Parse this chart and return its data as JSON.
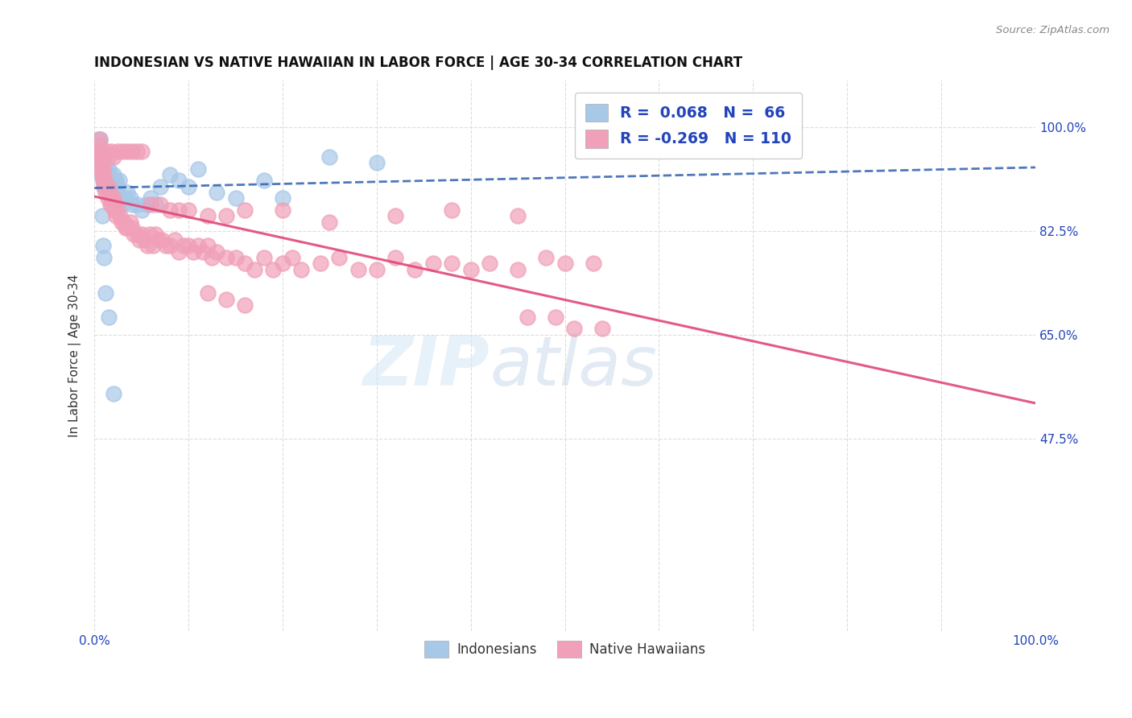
{
  "title": "INDONESIAN VS NATIVE HAWAIIAN IN LABOR FORCE | AGE 30-34 CORRELATION CHART",
  "source": "Source: ZipAtlas.com",
  "ylabel": "In Labor Force | Age 30-34",
  "ytick_labels": [
    "100.0%",
    "82.5%",
    "65.0%",
    "47.5%"
  ],
  "ytick_values": [
    1.0,
    0.825,
    0.65,
    0.475
  ],
  "xlim": [
    0.0,
    1.0
  ],
  "ylim": [
    0.15,
    1.08
  ],
  "watermark_zip": "ZIP",
  "watermark_atlas": "atlas",
  "legend_r_blue": "R =  0.068",
  "legend_n_blue": "N =  66",
  "legend_r_pink": "R = -0.269",
  "legend_n_pink": "N = 110",
  "blue_color": "#a8c8e8",
  "pink_color": "#f0a0b8",
  "blue_line_color": "#3060b0",
  "pink_line_color": "#e04878",
  "blue_edge_color": "#a8c8e8",
  "pink_edge_color": "#f0a0b8",
  "legend_text_color": "#2244bb",
  "title_color": "#111111",
  "axis_label_color": "#2244bb",
  "grid_color": "#dddddd",
  "blue_scatter_x": [
    0.003,
    0.004,
    0.004,
    0.005,
    0.005,
    0.006,
    0.006,
    0.006,
    0.007,
    0.007,
    0.007,
    0.008,
    0.008,
    0.008,
    0.009,
    0.009,
    0.01,
    0.01,
    0.01,
    0.011,
    0.011,
    0.012,
    0.012,
    0.013,
    0.013,
    0.014,
    0.015,
    0.015,
    0.016,
    0.017,
    0.018,
    0.019,
    0.02,
    0.021,
    0.022,
    0.023,
    0.025,
    0.026,
    0.028,
    0.03,
    0.032,
    0.035,
    0.038,
    0.04,
    0.045,
    0.05,
    0.055,
    0.06,
    0.065,
    0.07,
    0.08,
    0.09,
    0.1,
    0.11,
    0.13,
    0.15,
    0.18,
    0.2,
    0.25,
    0.3,
    0.008,
    0.009,
    0.01,
    0.012,
    0.015,
    0.02
  ],
  "blue_scatter_y": [
    0.96,
    0.97,
    0.98,
    0.96,
    0.97,
    0.96,
    0.97,
    0.98,
    0.92,
    0.94,
    0.96,
    0.93,
    0.95,
    0.96,
    0.91,
    0.93,
    0.9,
    0.92,
    0.94,
    0.91,
    0.93,
    0.9,
    0.92,
    0.91,
    0.93,
    0.9,
    0.91,
    0.93,
    0.9,
    0.92,
    0.91,
    0.9,
    0.92,
    0.91,
    0.89,
    0.91,
    0.9,
    0.91,
    0.88,
    0.87,
    0.88,
    0.89,
    0.88,
    0.87,
    0.87,
    0.86,
    0.87,
    0.88,
    0.87,
    0.9,
    0.92,
    0.91,
    0.9,
    0.93,
    0.89,
    0.88,
    0.91,
    0.88,
    0.95,
    0.94,
    0.85,
    0.8,
    0.78,
    0.72,
    0.68,
    0.55
  ],
  "pink_scatter_x": [
    0.003,
    0.004,
    0.005,
    0.006,
    0.006,
    0.007,
    0.007,
    0.008,
    0.008,
    0.009,
    0.009,
    0.01,
    0.01,
    0.011,
    0.012,
    0.013,
    0.014,
    0.015,
    0.016,
    0.017,
    0.018,
    0.019,
    0.02,
    0.021,
    0.022,
    0.023,
    0.025,
    0.027,
    0.029,
    0.031,
    0.033,
    0.035,
    0.038,
    0.04,
    0.042,
    0.045,
    0.048,
    0.05,
    0.053,
    0.056,
    0.059,
    0.062,
    0.065,
    0.068,
    0.072,
    0.076,
    0.08,
    0.085,
    0.09,
    0.095,
    0.1,
    0.105,
    0.11,
    0.115,
    0.12,
    0.125,
    0.13,
    0.14,
    0.15,
    0.16,
    0.17,
    0.18,
    0.19,
    0.2,
    0.21,
    0.22,
    0.24,
    0.26,
    0.28,
    0.3,
    0.32,
    0.34,
    0.36,
    0.38,
    0.4,
    0.42,
    0.45,
    0.48,
    0.5,
    0.53,
    0.06,
    0.07,
    0.08,
    0.09,
    0.1,
    0.12,
    0.14,
    0.16,
    0.2,
    0.25,
    0.32,
    0.38,
    0.45,
    0.12,
    0.14,
    0.16,
    0.46,
    0.49,
    0.51,
    0.54,
    0.013,
    0.015,
    0.018,
    0.02,
    0.025,
    0.03,
    0.035,
    0.04,
    0.045,
    0.05
  ],
  "pink_scatter_y": [
    0.96,
    0.97,
    0.95,
    0.96,
    0.98,
    0.93,
    0.95,
    0.92,
    0.94,
    0.91,
    0.93,
    0.9,
    0.92,
    0.91,
    0.89,
    0.9,
    0.88,
    0.9,
    0.89,
    0.87,
    0.88,
    0.87,
    0.88,
    0.86,
    0.87,
    0.85,
    0.86,
    0.85,
    0.84,
    0.84,
    0.83,
    0.83,
    0.84,
    0.83,
    0.82,
    0.82,
    0.81,
    0.82,
    0.81,
    0.8,
    0.82,
    0.8,
    0.82,
    0.81,
    0.81,
    0.8,
    0.8,
    0.81,
    0.79,
    0.8,
    0.8,
    0.79,
    0.8,
    0.79,
    0.8,
    0.78,
    0.79,
    0.78,
    0.78,
    0.77,
    0.76,
    0.78,
    0.76,
    0.77,
    0.78,
    0.76,
    0.77,
    0.78,
    0.76,
    0.76,
    0.78,
    0.76,
    0.77,
    0.77,
    0.76,
    0.77,
    0.76,
    0.78,
    0.77,
    0.77,
    0.87,
    0.87,
    0.86,
    0.86,
    0.86,
    0.85,
    0.85,
    0.86,
    0.86,
    0.84,
    0.85,
    0.86,
    0.85,
    0.72,
    0.71,
    0.7,
    0.68,
    0.68,
    0.66,
    0.66,
    0.96,
    0.95,
    0.96,
    0.95,
    0.96,
    0.96,
    0.96,
    0.96,
    0.96,
    0.96
  ]
}
